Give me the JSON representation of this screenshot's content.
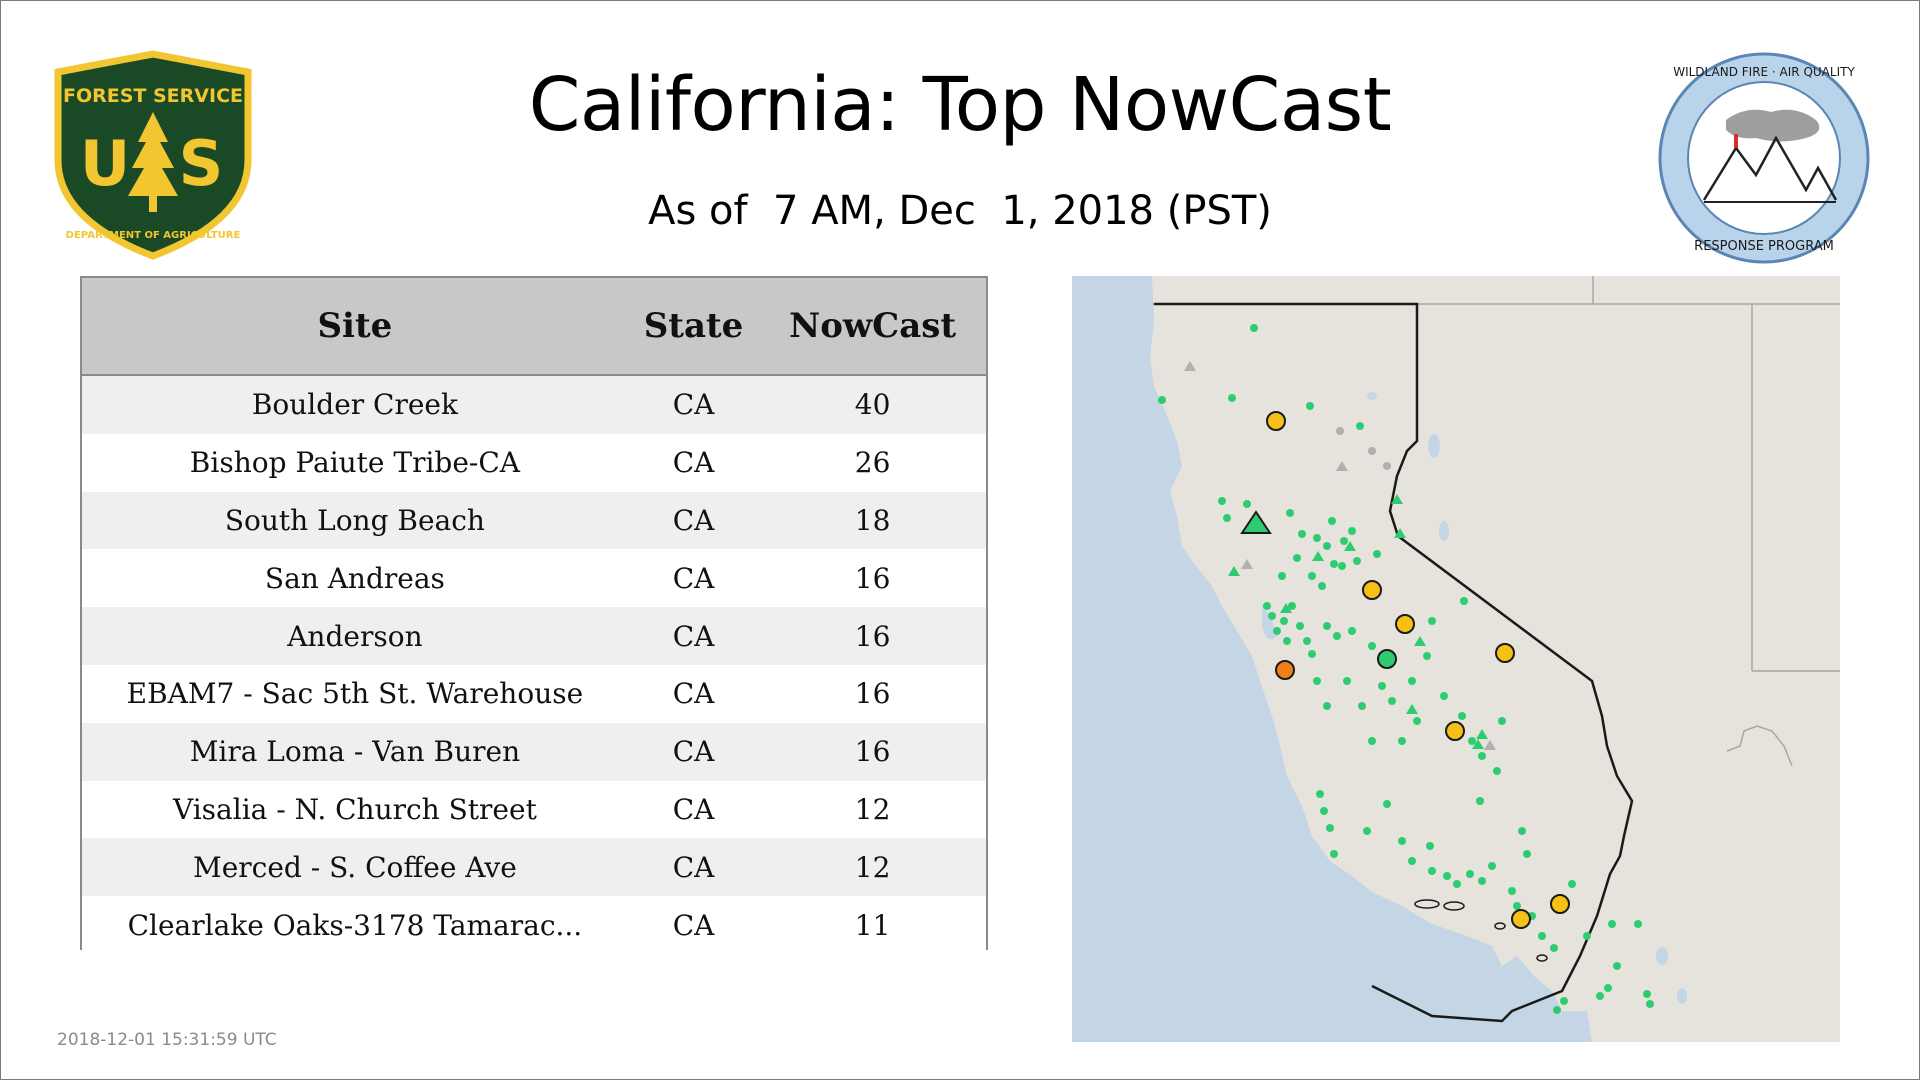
{
  "header": {
    "title": "California: Top NowCast",
    "subtitle": "As of  7 AM, Dec  1, 2018 (PST)"
  },
  "logos": {
    "left": {
      "icon": "forest-service-shield-icon",
      "arc_text": "FOREST SERVICE",
      "letters_left": "U",
      "letters_right": "S",
      "bottom_text": "DEPARTMENT OF AGRICULTURE"
    },
    "right": {
      "icon": "wildland-fire-air-quality-icon",
      "top_text": "WILDLAND FIRE · AIR QUALITY",
      "bottom_text": "RESPONSE PROGRAM"
    }
  },
  "table": {
    "columns": [
      "Site",
      "State",
      "NowCast"
    ],
    "rows": [
      {
        "site": "Boulder Creek",
        "state": "CA",
        "nowcast": "40"
      },
      {
        "site": "Bishop Paiute Tribe-CA",
        "state": "CA",
        "nowcast": "26"
      },
      {
        "site": "South Long Beach",
        "state": "CA",
        "nowcast": "18"
      },
      {
        "site": "San Andreas",
        "state": "CA",
        "nowcast": "16"
      },
      {
        "site": "Anderson",
        "state": "CA",
        "nowcast": "16"
      },
      {
        "site": "EBAM7 - Sac 5th St. Warehouse",
        "state": "CA",
        "nowcast": "16"
      },
      {
        "site": "Mira Loma - Van Buren",
        "state": "CA",
        "nowcast": "16"
      },
      {
        "site": "Visalia - N. Church Street",
        "state": "CA",
        "nowcast": "12"
      },
      {
        "site": "Merced - S. Coffee Ave",
        "state": "CA",
        "nowcast": "12"
      },
      {
        "site": "Clearlake Oaks-3178 Tamarac...",
        "state": "CA",
        "nowcast": "11"
      }
    ]
  },
  "map": {
    "region": "California",
    "colors": {
      "ocean": "#c4d6e6",
      "land": "#e6e2dc",
      "good": "#2ecc71",
      "moderate": "#f5c116",
      "usg": "#f07f1a",
      "no_data": "#b0b0b0"
    }
  },
  "footer": {
    "timestamp": "2018-12-01 15:31:59 UTC"
  }
}
